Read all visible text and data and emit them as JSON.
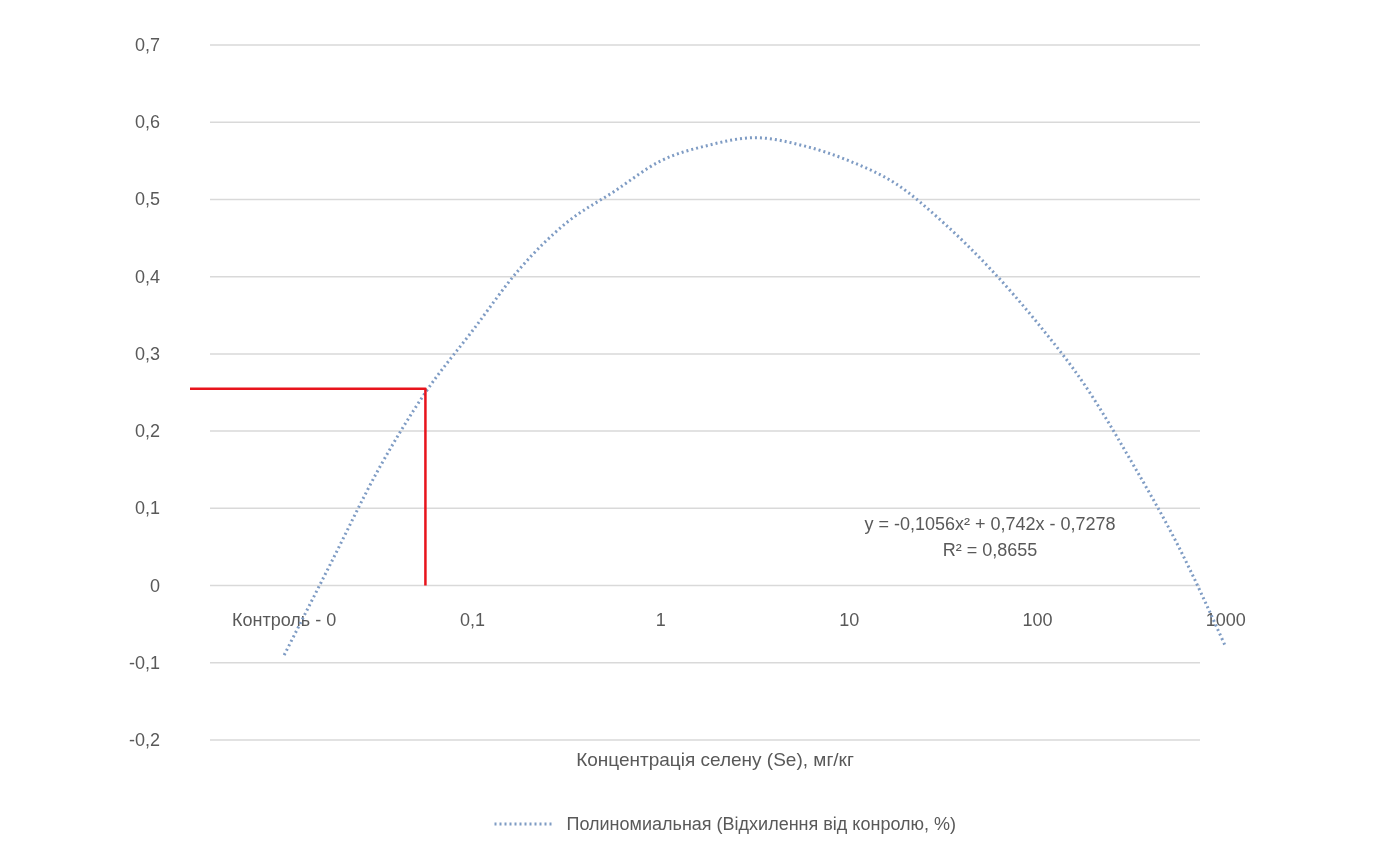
{
  "chart_data": {
    "type": "line",
    "xlabel": "Концентрація селену (Se), мг/кг",
    "categories": [
      null,
      null,
      "Контроль - 0",
      null,
      null,
      null,
      "0,1",
      null,
      null,
      null,
      "1",
      null,
      null,
      null,
      "10",
      null,
      null,
      null,
      "100",
      null,
      null,
      null,
      "1000",
      null,
      null
    ],
    "ylim": [
      -0.2,
      0.7
    ],
    "yticks": [
      {
        "value": -0.2,
        "label": "-0,2"
      },
      {
        "value": -0.1,
        "label": "-0,1"
      },
      {
        "value": 0,
        "label": "0"
      },
      {
        "value": 0.1,
        "label": "0,1"
      },
      {
        "value": 0.2,
        "label": "0,2"
      },
      {
        "value": 0.3,
        "label": "0,3"
      },
      {
        "value": 0.4,
        "label": "0,4"
      },
      {
        "value": 0.5,
        "label": "0,5"
      },
      {
        "value": 0.6,
        "label": "0,6"
      },
      {
        "value": 0.7,
        "label": "0,7"
      }
    ],
    "grid": "y",
    "legend": "bottom",
    "series": [
      {
        "name": "Полиномиальная (Відхилення від конролю, %)",
        "color": "#7f9cc4",
        "line_style": "dotted",
        "values": [
          null,
          null,
          -0.09,
          0.03,
          0.15,
          0.25,
          0.33,
          0.41,
          0.47,
          0.51,
          0.55,
          0.57,
          0.58,
          0.57,
          0.55,
          0.52,
          0.47,
          0.41,
          0.34,
          0.26,
          0.16,
          0.05,
          -0.08,
          null,
          null
        ]
      },
      {
        "type": "step",
        "color": "#e8141c",
        "line_style": "solid",
        "values": [
          0.255,
          0.255,
          0.255,
          0.255,
          0.255,
          0,
          null,
          null,
          null,
          null,
          null,
          null,
          null,
          null,
          null,
          null,
          null,
          null,
          null,
          null,
          null,
          null,
          null,
          null,
          null
        ]
      }
    ],
    "annotations": [
      "y = -0,1056x² + 0,742x - 0,7278",
      "R² = 0,8655"
    ]
  }
}
